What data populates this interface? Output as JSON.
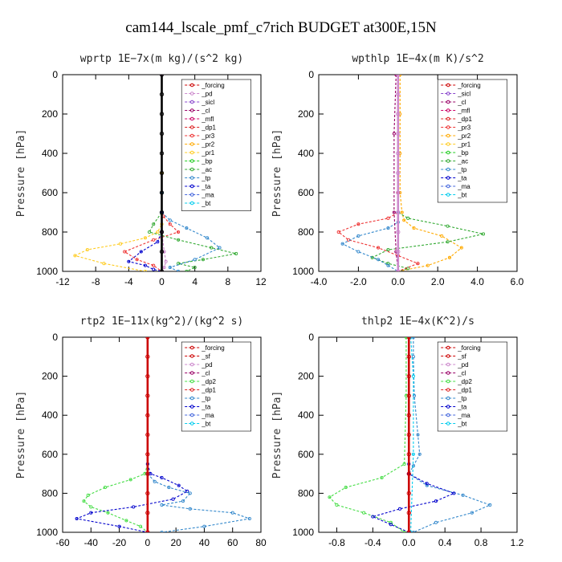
{
  "title": "cam144_lscale_pmf_c7rich  BUDGET at300E,15N",
  "colors": {
    "forcing": "#cc0000",
    "sf": "#cc0000",
    "pd": "#cc88cc",
    "sicl": "#8844cc",
    "cl": "#990066",
    "mfl": "#cc0066",
    "dp1": "#dd2222",
    "pr3": "#ee3333",
    "pr2": "#ffaa00",
    "pr1": "#ffcc22",
    "bp": "#22cc22",
    "ac": "#33aa33",
    "tp": "#3388cc",
    "ta": "#0000cc",
    "ma": "#4466dd",
    "bt": "#00ccee",
    "dp2": "#44dd44"
  },
  "chart_data": [
    {
      "type": "line",
      "title": "wprtp  1E−7x(m kg)/(s^2 kg)",
      "ylabel": "Pressure [hPa]",
      "xlim": [
        -12,
        12
      ],
      "ylim": [
        1000,
        0
      ],
      "xticks": [
        "-12",
        "-8",
        "-4",
        "0",
        "4",
        "8",
        "12"
      ],
      "yticks": [
        "0",
        "200",
        "400",
        "600",
        "800",
        "1000"
      ],
      "legend": [
        "_forcing",
        "_pd",
        "_sicl",
        "_cl",
        "_mfl",
        "_dp1",
        "_pr3",
        "_pr2",
        "_pr1",
        "_bp",
        "_ac",
        "_tp",
        "_ta",
        "_ma",
        "_bt"
      ],
      "series": [
        {
          "name": "_forcing",
          "color": "#000000",
          "x": [
            0,
            0,
            0,
            0,
            0,
            0,
            0,
            0,
            0,
            0,
            0
          ],
          "y": [
            0,
            100,
            200,
            300,
            400,
            500,
            600,
            700,
            800,
            900,
            1000
          ]
        },
        {
          "name": "_pr1",
          "color": "#ffcc22",
          "x": [
            0,
            0,
            0,
            0,
            -0.5,
            -2,
            -5,
            -9,
            -10.5,
            -7,
            -2
          ],
          "y": [
            500,
            600,
            700,
            760,
            800,
            830,
            860,
            890,
            920,
            960,
            1000
          ]
        },
        {
          "name": "_pr3",
          "color": "#ee3333",
          "x": [
            0,
            0,
            0.2,
            1,
            2,
            -1,
            -4.5,
            -3,
            -1,
            0
          ],
          "y": [
            600,
            700,
            720,
            760,
            800,
            840,
            900,
            940,
            970,
            1000
          ]
        },
        {
          "name": "_ac",
          "color": "#33aa33",
          "x": [
            0,
            0,
            -1,
            -1.5,
            2,
            6,
            9,
            5,
            2,
            4,
            3
          ],
          "y": [
            600,
            700,
            760,
            800,
            840,
            880,
            910,
            940,
            960,
            980,
            1000
          ]
        },
        {
          "name": "_tp",
          "color": "#3388cc",
          "x": [
            0,
            0,
            1,
            3,
            5.5,
            7,
            4,
            1,
            2
          ],
          "y": [
            600,
            700,
            740,
            780,
            830,
            880,
            940,
            980,
            1000
          ]
        },
        {
          "name": "_ta",
          "color": "#0000cc",
          "x": [
            0,
            0,
            -0.5,
            -2.5,
            -4,
            -2,
            -1,
            0
          ],
          "y": [
            700,
            800,
            850,
            900,
            950,
            970,
            990,
            1000
          ]
        },
        {
          "name": "_pd",
          "color": "#cc88cc",
          "x": [
            0,
            0,
            0.3,
            0.5,
            0.3,
            0
          ],
          "y": [
            0,
            800,
            900,
            950,
            980,
            1000
          ]
        }
      ]
    },
    {
      "type": "line",
      "title": "wpthlp  1E−4x(m K)/s^2",
      "ylabel": "Pressure [hPa]",
      "xlim": [
        -4.0,
        6.0
      ],
      "ylim": [
        1000,
        0
      ],
      "xticks": [
        "-4.0",
        "-2.0",
        "0.0",
        "2.0",
        "4.0",
        "6.0"
      ],
      "yticks": [
        "0",
        "200",
        "400",
        "600",
        "800",
        "1000"
      ],
      "legend": [
        "_forcing",
        "_sicl",
        "_cl",
        "_mfl",
        "_dp1",
        "_pr3",
        "_pr2",
        "_pr1",
        "_bp",
        "_ac",
        "_tp",
        "_ta",
        "_ma",
        "_bt"
      ],
      "series": [
        {
          "name": "_forcing",
          "color": "#cc88cc",
          "x": [
            0,
            0,
            0,
            0,
            0,
            0,
            0,
            0,
            0,
            0,
            0
          ],
          "y": [
            0,
            100,
            200,
            300,
            400,
            500,
            600,
            700,
            800,
            900,
            1000
          ]
        },
        {
          "name": "_pr2",
          "color": "#ffaa00",
          "x": [
            0.1,
            0.1,
            0.1,
            0.1,
            0.2,
            0.3,
            0.8,
            2.2,
            3.2,
            2.6,
            1.5,
            0
          ],
          "y": [
            0,
            200,
            400,
            600,
            700,
            740,
            780,
            820,
            880,
            930,
            970,
            1000
          ]
        },
        {
          "name": "_ac",
          "color": "#33aa33",
          "x": [
            0,
            0,
            0.5,
            2.5,
            4.3,
            2.5,
            -0.5,
            -1.3,
            -0.5,
            0.5,
            0
          ],
          "y": [
            600,
            700,
            730,
            770,
            810,
            850,
            890,
            930,
            960,
            985,
            1000
          ]
        },
        {
          "name": "_pr3",
          "color": "#ee3333",
          "x": [
            0,
            0,
            -0.5,
            -2,
            -3,
            -2.5,
            -1,
            0,
            1,
            0
          ],
          "y": [
            600,
            700,
            730,
            760,
            800,
            840,
            880,
            920,
            960,
            1000
          ]
        },
        {
          "name": "_tp",
          "color": "#3388cc",
          "x": [
            0,
            0,
            -0.5,
            -2,
            -2.8,
            -2,
            -1,
            -0.5,
            0
          ],
          "y": [
            700,
            750,
            780,
            820,
            860,
            900,
            940,
            970,
            1000
          ]
        },
        {
          "name": "_mfl",
          "color": "#990066",
          "x": [
            -0.1,
            -0.2,
            -0.2,
            -0.1,
            0
          ],
          "y": [
            0,
            300,
            700,
            900,
            1000
          ]
        }
      ]
    },
    {
      "type": "line",
      "title": "rtp2  1E−11x(kg^2)/(kg^2 s)",
      "ylabel": "Pressure [hPa]",
      "xlim": [
        -60,
        80
      ],
      "ylim": [
        1000,
        0
      ],
      "xticks": [
        "-60",
        "-40",
        "-20",
        "0",
        "20",
        "40",
        "60",
        "80"
      ],
      "yticks": [
        "0",
        "200",
        "400",
        "600",
        "800",
        "1000"
      ],
      "legend": [
        "_forcing",
        "_sf",
        "_pd",
        "_cl",
        "_dp2",
        "_dp1",
        "_tp",
        "_ta",
        "_ma",
        "_bt"
      ],
      "series": [
        {
          "name": "_forcing",
          "color": "#cc0000",
          "x": [
            0,
            0,
            0,
            0,
            0,
            0,
            0,
            0,
            0,
            0,
            0
          ],
          "y": [
            0,
            100,
            200,
            300,
            400,
            500,
            600,
            700,
            800,
            900,
            1000
          ]
        },
        {
          "name": "_dp2",
          "color": "#44dd44",
          "x": [
            0,
            -2,
            -12,
            -30,
            -42,
            -45,
            -40,
            -28,
            -15,
            -5,
            0
          ],
          "y": [
            650,
            700,
            730,
            770,
            810,
            840,
            870,
            900,
            940,
            970,
            1000
          ]
        },
        {
          "name": "_ta",
          "color": "#0000cc",
          "x": [
            0,
            2,
            10,
            22,
            28,
            18,
            -10,
            -40,
            -50,
            -20,
            0
          ],
          "y": [
            650,
            700,
            720,
            760,
            790,
            830,
            870,
            900,
            930,
            970,
            1000
          ]
        },
        {
          "name": "_tp",
          "color": "#3388cc",
          "x": [
            0,
            5,
            15,
            30,
            25,
            10,
            30,
            60,
            72,
            40,
            10
          ],
          "y": [
            700,
            740,
            770,
            800,
            840,
            860,
            880,
            900,
            930,
            970,
            1000
          ]
        }
      ]
    },
    {
      "type": "line",
      "title": "thlp2  1E−4x(K^2)/s",
      "ylabel": "Pressure [hPa]",
      "xlim": [
        -1.0,
        1.2
      ],
      "ylim": [
        1000,
        0
      ],
      "xticks": [
        "-0.8",
        "-0.4",
        "0.0",
        "0.4",
        "0.8",
        "1.2"
      ],
      "yticks": [
        "0",
        "200",
        "400",
        "600",
        "800",
        "1000"
      ],
      "legend": [
        "_forcing",
        "_sf",
        "_pd",
        "_cl",
        "_dp2",
        "_dp1",
        "_tp",
        "_ta",
        "_ma",
        "_bt"
      ],
      "series": [
        {
          "name": "_forcing",
          "color": "#cc0000",
          "x": [
            0,
            0,
            0,
            0,
            0,
            0,
            0,
            0,
            0,
            0,
            0
          ],
          "y": [
            0,
            100,
            200,
            300,
            400,
            500,
            600,
            700,
            800,
            900,
            1000
          ]
        },
        {
          "name": "_tp",
          "color": "#3388cc",
          "x": [
            0.05,
            0.05,
            0.06,
            0.1,
            0.12,
            0.05,
            0,
            0.2,
            0.6,
            0.9,
            0.7,
            0.3,
            0.05
          ],
          "y": [
            0,
            100,
            300,
            500,
            600,
            660,
            700,
            760,
            810,
            860,
            900,
            950,
            1000
          ]
        },
        {
          "name": "_dp2",
          "color": "#44dd44",
          "x": [
            -0.03,
            -0.03,
            -0.05,
            -0.3,
            -0.7,
            -0.88,
            -0.8,
            -0.5,
            -0.2,
            -0.05
          ],
          "y": [
            0,
            300,
            650,
            720,
            770,
            820,
            860,
            900,
            950,
            1000
          ]
        },
        {
          "name": "_ta",
          "color": "#0000cc",
          "x": [
            0,
            0,
            0.2,
            0.5,
            0.3,
            -0.1,
            -0.4,
            -0.2,
            0
          ],
          "y": [
            650,
            700,
            750,
            800,
            840,
            880,
            920,
            960,
            1000
          ]
        },
        {
          "name": "_bt",
          "color": "#00ccee",
          "x": [
            0.02,
            0.05,
            0.05,
            0.02
          ],
          "y": [
            0,
            200,
            600,
            1000
          ]
        }
      ]
    }
  ]
}
